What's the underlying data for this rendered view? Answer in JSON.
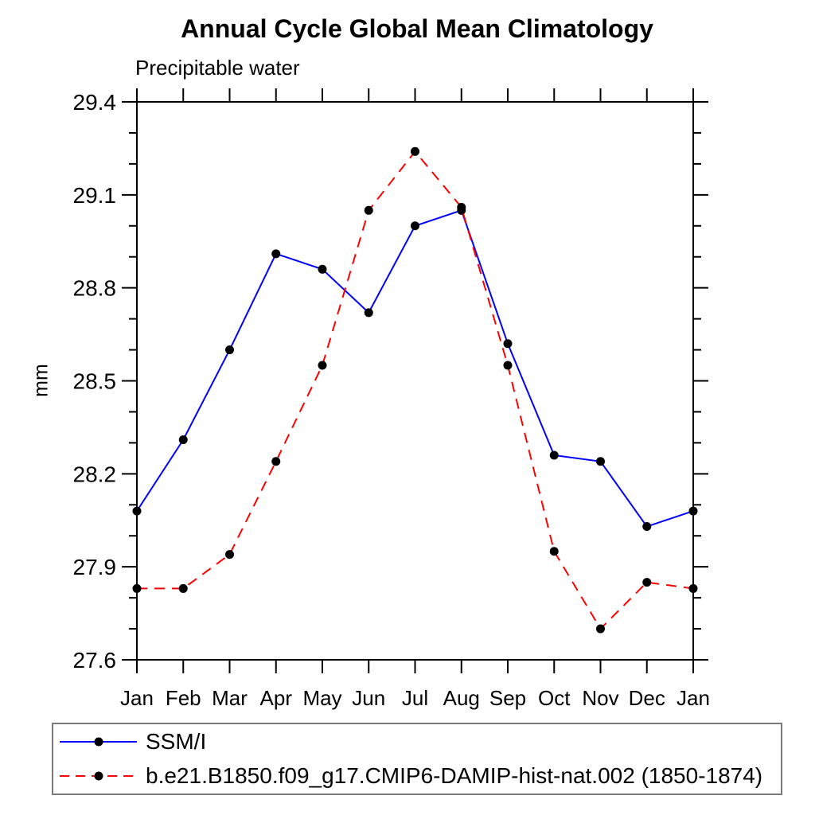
{
  "header": {
    "title": "Annual Cycle Global Mean Climatology",
    "subtitle": "Precipitable water"
  },
  "chart_data": {
    "type": "line",
    "title": "Annual Cycle Global Mean Climatology",
    "subtitle": "Precipitable water",
    "xlabel": "",
    "ylabel": "mm",
    "categories": [
      "Jan",
      "Feb",
      "Mar",
      "Apr",
      "May",
      "Jun",
      "Jul",
      "Aug",
      "Sep",
      "Oct",
      "Nov",
      "Dec",
      "Jan"
    ],
    "series": [
      {
        "name": "SSM/I",
        "color": "#0000ff",
        "line_style": "solid",
        "marker": "circle",
        "marker_color": "#000000",
        "values": [
          28.08,
          28.31,
          28.6,
          28.91,
          28.86,
          28.72,
          29.0,
          29.05,
          28.62,
          28.26,
          28.24,
          28.03,
          28.08
        ]
      },
      {
        "name": "b.e21.B1850.f09_g17.CMIP6-DAMIP-hist-nat.002 (1850-1874)",
        "color": "#ff0000",
        "line_style": "dashed",
        "marker": "circle",
        "marker_color": "#000000",
        "values": [
          27.83,
          27.83,
          27.94,
          28.24,
          28.55,
          29.05,
          29.24,
          29.06,
          28.55,
          27.95,
          27.7,
          27.85,
          27.83
        ]
      }
    ],
    "ylim": [
      27.6,
      29.4
    ],
    "y_major_step": 0.3,
    "y_minor_step": 0.1,
    "grid": false,
    "legend_position": "bottom",
    "axis_color": "#000000",
    "text_color": "#000000"
  }
}
